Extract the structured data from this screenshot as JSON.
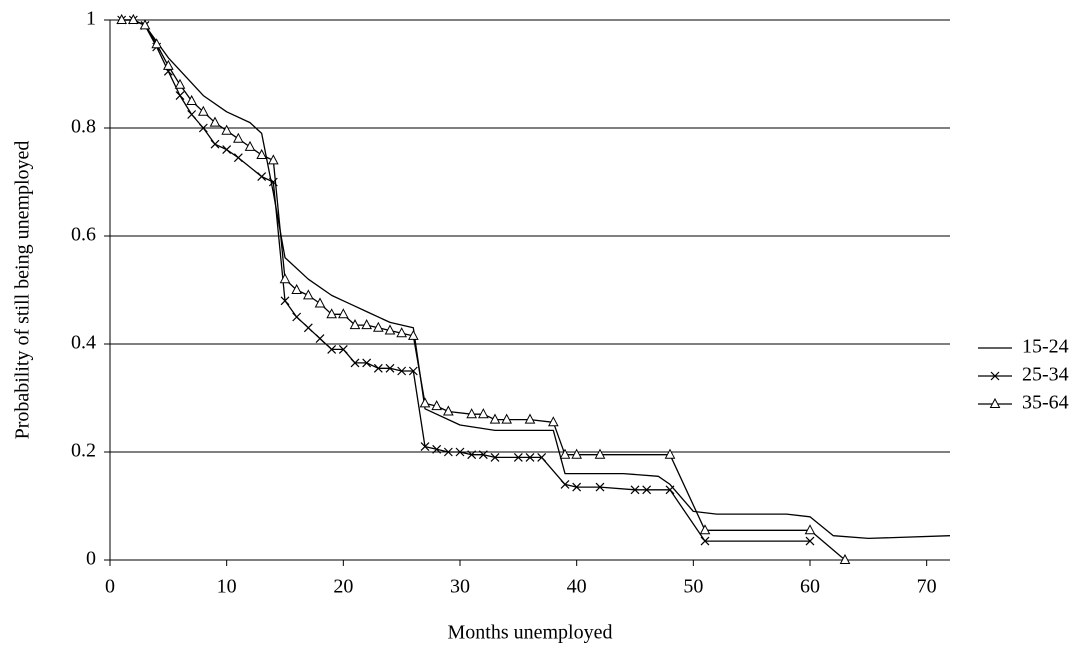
{
  "chart_data": {
    "type": "line",
    "x_label": "Months unemployed",
    "y_label": "Probability of still being unemployed",
    "xlim": [
      0,
      72
    ],
    "xticks": [
      0,
      10,
      20,
      30,
      40,
      50,
      60,
      70
    ],
    "ylim": [
      0,
      1
    ],
    "yticks": [
      0,
      0.2,
      0.4,
      0.6,
      0.8,
      1
    ],
    "grid": true,
    "legend": "right",
    "series": [
      {
        "name": "15-24",
        "color": "#000000",
        "marker": "none",
        "x": [
          1,
          2,
          3,
          5,
          8,
          10,
          12,
          13,
          14,
          15,
          17,
          19,
          20,
          21,
          22,
          24,
          26,
          27,
          30,
          33,
          38,
          39,
          44,
          47,
          48,
          50,
          52,
          58,
          60,
          62,
          65,
          72
        ],
        "values": [
          1.0,
          1.0,
          0.99,
          0.93,
          0.86,
          0.83,
          0.81,
          0.79,
          0.68,
          0.56,
          0.52,
          0.49,
          0.48,
          0.47,
          0.46,
          0.44,
          0.43,
          0.28,
          0.25,
          0.24,
          0.24,
          0.16,
          0.16,
          0.155,
          0.14,
          0.09,
          0.085,
          0.085,
          0.08,
          0.045,
          0.04,
          0.045
        ]
      },
      {
        "name": "25-34",
        "color": "#000000",
        "marker": "x",
        "x": [
          1,
          2,
          3,
          4,
          5,
          6,
          7,
          8,
          9,
          10,
          11,
          13,
          14,
          15,
          16,
          17,
          18,
          19,
          20,
          21,
          22,
          23,
          24,
          25,
          26,
          27,
          28,
          29,
          30,
          31,
          32,
          33,
          35,
          36,
          37,
          39,
          40,
          42,
          45,
          46,
          48,
          51,
          60
        ],
        "values": [
          1.0,
          1.0,
          0.99,
          0.95,
          0.905,
          0.86,
          0.825,
          0.8,
          0.77,
          0.76,
          0.745,
          0.71,
          0.7,
          0.48,
          0.45,
          0.43,
          0.41,
          0.39,
          0.39,
          0.365,
          0.365,
          0.355,
          0.355,
          0.35,
          0.35,
          0.21,
          0.205,
          0.2,
          0.2,
          0.195,
          0.195,
          0.19,
          0.19,
          0.19,
          0.19,
          0.14,
          0.135,
          0.135,
          0.13,
          0.13,
          0.13,
          0.035,
          0.035
        ]
      },
      {
        "name": "35-64",
        "color": "#000000",
        "marker": "triangle",
        "x": [
          1,
          2,
          3,
          4,
          5,
          6,
          7,
          8,
          9,
          10,
          11,
          12,
          13,
          14,
          15,
          16,
          17,
          18,
          19,
          20,
          21,
          22,
          23,
          24,
          25,
          26,
          27,
          28,
          29,
          31,
          32,
          33,
          34,
          36,
          38,
          39,
          40,
          42,
          48,
          51,
          60,
          63
        ],
        "values": [
          1.0,
          1.0,
          0.99,
          0.955,
          0.915,
          0.88,
          0.85,
          0.83,
          0.81,
          0.795,
          0.78,
          0.765,
          0.75,
          0.74,
          0.52,
          0.5,
          0.49,
          0.475,
          0.455,
          0.455,
          0.435,
          0.435,
          0.43,
          0.425,
          0.42,
          0.415,
          0.29,
          0.285,
          0.275,
          0.27,
          0.27,
          0.26,
          0.26,
          0.26,
          0.255,
          0.195,
          0.195,
          0.195,
          0.195,
          0.055,
          0.055,
          0.0
        ]
      }
    ]
  }
}
